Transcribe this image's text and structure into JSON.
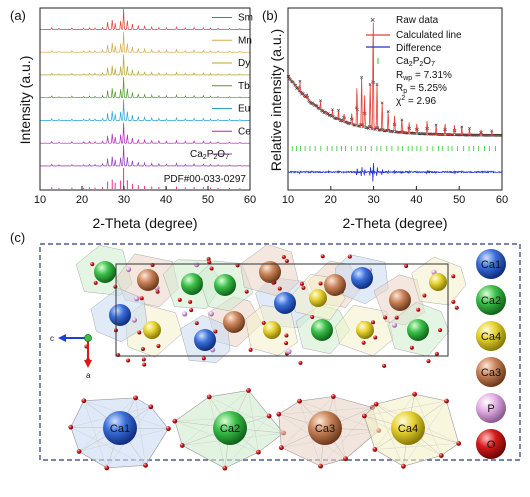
{
  "panels": {
    "a": {
      "label": "(a)",
      "xlabel": "2-Theta (degree)",
      "ylabel": "Intensity (a.u.)",
      "xlim": [
        10,
        60
      ],
      "xticks": [
        "10",
        "20",
        "30",
        "40",
        "50",
        "60"
      ],
      "traces": [
        {
          "name": "Sm",
          "color": "#e4403a"
        },
        {
          "name": "Mn",
          "color": "#d6a84a"
        },
        {
          "name": "Dy",
          "color": "#b9a630"
        },
        {
          "name": "Tb",
          "color": "#4f9a2a"
        },
        {
          "name": "Eu",
          "color": "#2aa3d8"
        },
        {
          "name": "Ce",
          "color": "#b22ab5"
        },
        {
          "name": "Ca2P2O7",
          "label_main": "Ca",
          "sub1": "2",
          "mid": "P",
          "sub2": "2",
          "tail": "O",
          "sub3": "7",
          "color": "#8f3bbf"
        },
        {
          "name": "PDF#00-033-0297",
          "color": "#e8308c"
        }
      ]
    },
    "b": {
      "label": "(b)",
      "xlabel": "2-Theta (degree)",
      "ylabel": "Relative intensity (a.u.)",
      "xlim": [
        10,
        60
      ],
      "xticks": [
        "10",
        "20",
        "30",
        "40",
        "50",
        "60"
      ],
      "legend": {
        "raw": "Raw data",
        "calc": "Calculated line",
        "diff": "Difference",
        "phase": {
          "main": "Ca",
          "s1": "2",
          "m": "P",
          "s2": "2",
          "t": "O",
          "s3": "7"
        },
        "rwp": {
          "label": "R",
          "sub": "wp",
          "value": " = 7.31%"
        },
        "rp": {
          "label": "R",
          "sub": "p",
          "value": " = 5.25%"
        },
        "chi": {
          "label": "χ",
          "sup": "2",
          "value": " = 2.96"
        }
      },
      "colors": {
        "raw": "#333333",
        "calc": "#e4403a",
        "diff": "#2233cc",
        "tick": "#22cc22"
      }
    },
    "c": {
      "label": "(c)",
      "axes": {
        "c": "c",
        "a": "a"
      },
      "legend": [
        {
          "name": "Ca1",
          "color": "#3a6fd8"
        },
        {
          "name": "Ca2",
          "color": "#3cbf4a"
        },
        {
          "name": "Ca4",
          "color": "#e6d230"
        },
        {
          "name": "Ca3",
          "color": "#c9845a"
        },
        {
          "name": "P",
          "color": "#e2b0e4"
        },
        {
          "name": "O",
          "color": "#d81a1a"
        }
      ],
      "polyhedra": [
        {
          "name": "Ca1",
          "color": "#3a6fd8",
          "face": "#c9daf3"
        },
        {
          "name": "Ca2",
          "color": "#3cbf4a",
          "face": "#cfeccd"
        },
        {
          "name": "Ca3",
          "color": "#c9845a",
          "face": "#ead3c6"
        },
        {
          "name": "Ca4",
          "color": "#e6d230",
          "face": "#f4f1c8"
        }
      ]
    }
  }
}
